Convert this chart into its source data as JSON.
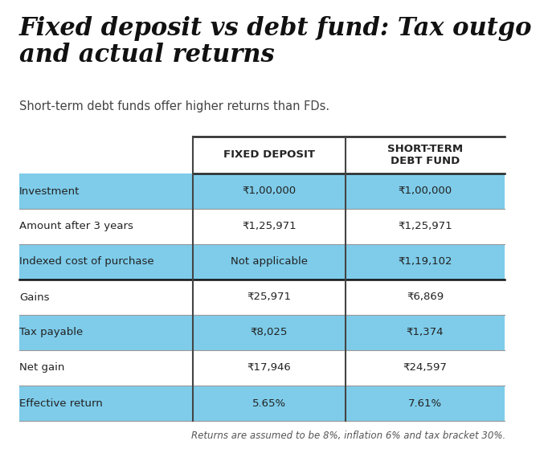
{
  "title": "Fixed deposit vs debt fund: Tax outgo\nand actual returns",
  "subtitle": "Short-term debt funds offer higher returns than FDs.",
  "footnote": "Returns are assumed to be 8%, inflation 6% and tax bracket 30%.",
  "col_headers": [
    "FIXED DEPOSIT",
    "SHORT-TERM\nDEBT FUND"
  ],
  "rows": [
    {
      "label": "Investment",
      "fd": "₹1,00,000",
      "df": "₹1,00,000",
      "highlighted": true
    },
    {
      "label": "Amount after 3 years",
      "fd": "₹1,25,971",
      "df": "₹1,25,971",
      "highlighted": false
    },
    {
      "label": "Indexed cost of purchase",
      "fd": "Not applicable",
      "df": "₹1,19,102",
      "highlighted": true
    },
    {
      "label": "Gains",
      "fd": "₹25,971",
      "df": "₹6,869",
      "highlighted": false
    },
    {
      "label": "Tax payable",
      "fd": "₹8,025",
      "df": "₹1,374",
      "highlighted": true
    },
    {
      "label": "Net gain",
      "fd": "₹17,946",
      "df": "₹24,597",
      "highlighted": false
    },
    {
      "label": "Effective return",
      "fd": "5.65%",
      "df": "7.61%",
      "highlighted": true
    }
  ],
  "thick_line_after_row": 3,
  "highlight_color": "#7eccea",
  "white": "#ffffff",
  "bg_color": "#ffffff",
  "text_color": "#222222",
  "title_color": "#111111",
  "subtitle_color": "#444444",
  "footnote_color": "#555555",
  "col_divider_color": "#444444",
  "row_divider_color": "#999999",
  "header_divider_color": "#222222",
  "thick_line_color": "#111111"
}
